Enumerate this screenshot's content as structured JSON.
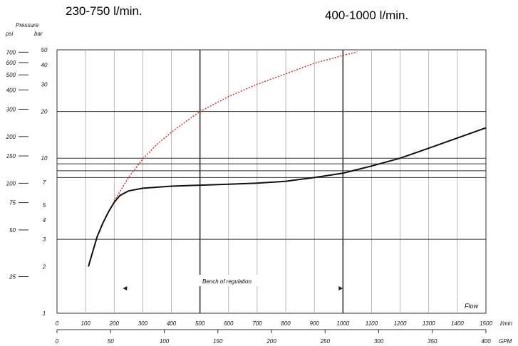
{
  "header": {
    "left_range": "230-750 l/min.",
    "right_range": "400-1000 l/min."
  },
  "chart_data": {
    "type": "line",
    "ylabel": "Pressure",
    "y_units": [
      "psi",
      "bar"
    ],
    "x_axis_label": "Flow",
    "x_primary_unit": "l/min",
    "x_secondary_unit": "GPM",
    "annotation": "Bench of regulation",
    "xlim": [
      0,
      1500
    ],
    "ylim_bar": [
      1,
      50
    ],
    "y_scale": "log",
    "grid": true,
    "x_ticks_lmin": [
      "0",
      "100",
      "200",
      "300",
      "400",
      "500",
      "600",
      "700",
      "800",
      "900",
      "1000",
      "1100",
      "1200",
      "1300",
      "1400",
      "1500"
    ],
    "x_ticks_gpm": [
      {
        "label": "0",
        "value": 0
      },
      {
        "label": "50",
        "value": 50
      },
      {
        "label": "100",
        "value": 100
      },
      {
        "label": "150",
        "value": 150
      },
      {
        "label": "200",
        "value": 200
      },
      {
        "label": "250",
        "value": 250
      },
      {
        "label": "300",
        "value": 300
      },
      {
        "label": "350",
        "value": 350
      },
      {
        "label": "400",
        "value": 400
      }
    ],
    "y_ticks_bar": [
      {
        "label": "1",
        "value": 1
      },
      {
        "label": "2",
        "value": 2
      },
      {
        "label": "3",
        "value": 3
      },
      {
        "label": "4",
        "value": 4
      },
      {
        "label": "5",
        "value": 5
      },
      {
        "label": "7",
        "value": 7
      },
      {
        "label": "10",
        "value": 10
      },
      {
        "label": "20",
        "value": 20
      },
      {
        "label": "30",
        "value": 30
      },
      {
        "label": "40",
        "value": 40
      },
      {
        "label": "50",
        "value": 50
      }
    ],
    "y_ticks_psi": [
      {
        "label": "25",
        "value": 25
      },
      {
        "label": "50",
        "value": 50
      },
      {
        "label": "75",
        "value": 75
      },
      {
        "label": "100",
        "value": 100
      },
      {
        "label": "150",
        "value": 150
      },
      {
        "label": "200",
        "value": 200
      },
      {
        "label": "300",
        "value": 300
      },
      {
        "label": "400",
        "value": 400
      },
      {
        "label": "500",
        "value": 500
      },
      {
        "label": "600",
        "value": 600
      },
      {
        "label": "700",
        "value": 700
      }
    ],
    "horizontal_gridlines_bar": [
      3,
      7.5,
      8.3,
      9.2,
      10,
      20
    ],
    "vertical_emphasis_lmin": [
      500,
      1000
    ],
    "regulation_range_lmin": [
      230,
      1000
    ],
    "series": [
      {
        "color": "#e0201a",
        "style": "dotted",
        "x": [
          200,
          250,
          300,
          350,
          400,
          450,
          500,
          600,
          700,
          800,
          900,
          1000,
          1050
        ],
        "y": [
          5.3,
          7.5,
          9.9,
          12.3,
          14.7,
          17.2,
          20,
          25,
          30,
          35,
          41,
          46,
          48.5
        ]
      },
      {
        "color": "#111111",
        "style": "solid",
        "x": [
          110,
          125,
          140,
          160,
          180,
          200,
          220,
          250,
          300,
          400,
          500,
          600,
          700,
          800,
          900,
          1000,
          1100,
          1200,
          1300,
          1400,
          1500
        ],
        "y": [
          2.0,
          2.5,
          3.1,
          3.8,
          4.5,
          5.2,
          5.75,
          6.15,
          6.4,
          6.6,
          6.7,
          6.8,
          6.9,
          7.1,
          7.5,
          8.0,
          8.9,
          10.0,
          11.6,
          13.5,
          15.7
        ]
      }
    ]
  }
}
